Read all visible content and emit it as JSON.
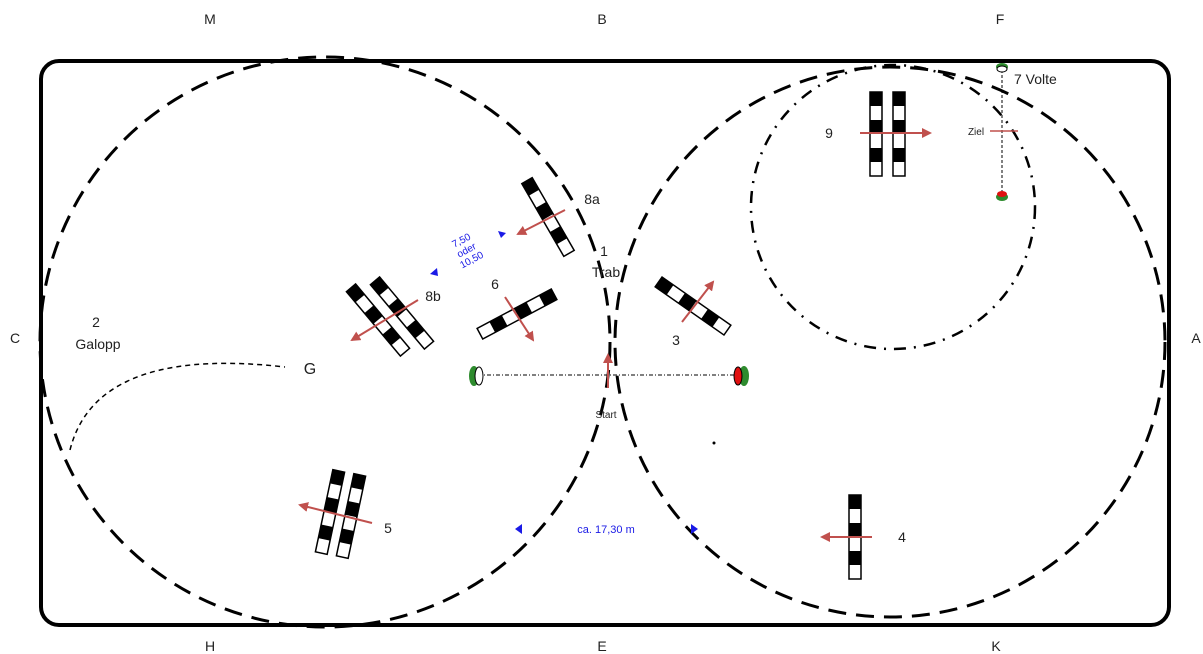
{
  "arena_letters": {
    "M": "M",
    "B": "B",
    "F": "F",
    "C": "C",
    "A": "A",
    "H": "H",
    "E": "E",
    "K": "K",
    "G": "G"
  },
  "labels": {
    "trab_number": "1",
    "trab_text": "Trab",
    "galopp_number": "2",
    "galopp_text": "Galopp",
    "obstacle_3": "3",
    "obstacle_4": "4",
    "obstacle_5": "5",
    "obstacle_6": "6",
    "obstacle_8a": "8a",
    "obstacle_8b": "8b",
    "obstacle_9": "9",
    "volte": "7 Volte",
    "ziel": "Ziel",
    "start": "Start"
  },
  "measurements": {
    "distance_line1": "7,50",
    "distance_line2": "oder",
    "distance_line3": "10,50",
    "circle_distance": "ca. 17,30 m"
  },
  "colors": {
    "arrow": "#c0504d",
    "measure": "#1a1ae6",
    "flag_green": "#2e8b2e",
    "flag_red": "#e01010"
  }
}
